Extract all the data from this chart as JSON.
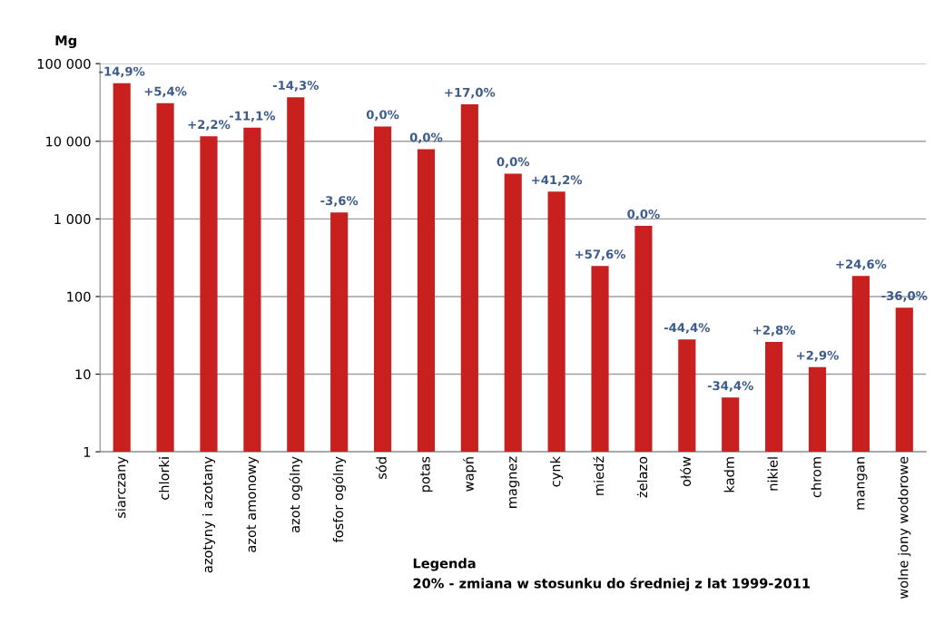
{
  "chart_data": {
    "type": "bar",
    "ylabel": "Mg",
    "categories": [
      "siarczany",
      "chlorki",
      "azotyny i azotany",
      "azot amonowy",
      "azot ogólny",
      "fosfor ogólny",
      "sód",
      "potas",
      "wapń",
      "magnez",
      "cynk",
      "miedź",
      "żelazo",
      "ołów",
      "kadm",
      "nikiel",
      "chrom",
      "mangan",
      "wolne jony wodorowe"
    ],
    "values": [
      56000,
      31000,
      11600,
      15000,
      37000,
      1210,
      15500,
      7900,
      30000,
      3830,
      2240,
      247,
      814,
      28,
      5,
      26,
      12.3,
      184,
      72
    ],
    "color": "#c8201e",
    "log": "y",
    "ylim": [
      1,
      100000
    ],
    "yticks": [
      1,
      10,
      100,
      {
        "value": 1000,
        "label": "1 000"
      },
      {
        "value": 10000,
        "label": "10 000"
      },
      {
        "value": 100000,
        "label": "100 000"
      }
    ],
    "grid": "y",
    "annotations": [
      {
        "text": "-14,9%",
        "x": "siarczany",
        "y": 56000
      },
      {
        "text": "+5,4%",
        "x": "chlorki",
        "y": 31000
      },
      {
        "text": "+2,2%",
        "x": "azotyny i azotany",
        "y": 11600
      },
      {
        "text": "-11,1%",
        "x": "azot amonowy",
        "y": 15000
      },
      {
        "text": "-14,3%",
        "x": "azot ogólny",
        "y": 37000
      },
      {
        "text": "-3,6%",
        "x": "fosfor ogólny",
        "y": 1210
      },
      {
        "text": "0,0%",
        "x": "sód",
        "y": 15500
      },
      {
        "text": "0,0%",
        "x": "potas",
        "y": 7900
      },
      {
        "text": "+17,0%",
        "x": "wapń",
        "y": 30000
      },
      {
        "text": "0,0%",
        "x": "magnez",
        "y": 3830
      },
      {
        "text": "+41,2%",
        "x": "cynk",
        "y": 2240
      },
      {
        "text": "+57,6%",
        "x": "miedź",
        "y": 247
      },
      {
        "text": "0,0%",
        "x": "żelazo",
        "y": 814
      },
      {
        "text": "-44,4%",
        "x": "ołów",
        "y": 28
      },
      {
        "text": "-34,4%",
        "x": "kadm",
        "y": 5
      },
      {
        "text": "+2,8%",
        "x": "nikiel",
        "y": 26
      },
      {
        "text": "+2,9%",
        "x": "chrom",
        "y": 12.3
      },
      {
        "text": "+24,6%",
        "x": "mangan",
        "y": 184
      },
      {
        "text": "-36,0%",
        "x": "wolne jony wodorowe",
        "y": 72
      },
      "Legenda",
      "20% - zmiana w stosunku do średniej z lat 1999-2011"
    ]
  }
}
